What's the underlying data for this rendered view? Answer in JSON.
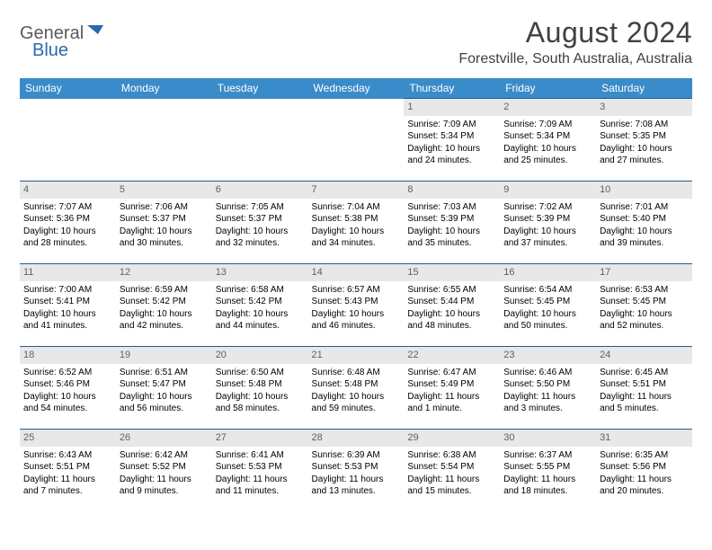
{
  "logo": {
    "word1": "General",
    "word2": "Blue"
  },
  "title": "August 2024",
  "location": "Forestville, South Australia, Australia",
  "dayHeaders": [
    "Sunday",
    "Monday",
    "Tuesday",
    "Wednesday",
    "Thursday",
    "Friday",
    "Saturday"
  ],
  "colors": {
    "headerBg": "#3a8bc9",
    "cellBorder": "#2a5a8a",
    "daynumBg": "#e8e8e8",
    "logoBlue": "#2a6ab0"
  },
  "weeks": [
    [
      null,
      null,
      null,
      null,
      {
        "n": "1",
        "sr": "Sunrise: 7:09 AM",
        "ss": "Sunset: 5:34 PM",
        "dl1": "Daylight: 10 hours",
        "dl2": "and 24 minutes."
      },
      {
        "n": "2",
        "sr": "Sunrise: 7:09 AM",
        "ss": "Sunset: 5:34 PM",
        "dl1": "Daylight: 10 hours",
        "dl2": "and 25 minutes."
      },
      {
        "n": "3",
        "sr": "Sunrise: 7:08 AM",
        "ss": "Sunset: 5:35 PM",
        "dl1": "Daylight: 10 hours",
        "dl2": "and 27 minutes."
      }
    ],
    [
      {
        "n": "4",
        "sr": "Sunrise: 7:07 AM",
        "ss": "Sunset: 5:36 PM",
        "dl1": "Daylight: 10 hours",
        "dl2": "and 28 minutes."
      },
      {
        "n": "5",
        "sr": "Sunrise: 7:06 AM",
        "ss": "Sunset: 5:37 PM",
        "dl1": "Daylight: 10 hours",
        "dl2": "and 30 minutes."
      },
      {
        "n": "6",
        "sr": "Sunrise: 7:05 AM",
        "ss": "Sunset: 5:37 PM",
        "dl1": "Daylight: 10 hours",
        "dl2": "and 32 minutes."
      },
      {
        "n": "7",
        "sr": "Sunrise: 7:04 AM",
        "ss": "Sunset: 5:38 PM",
        "dl1": "Daylight: 10 hours",
        "dl2": "and 34 minutes."
      },
      {
        "n": "8",
        "sr": "Sunrise: 7:03 AM",
        "ss": "Sunset: 5:39 PM",
        "dl1": "Daylight: 10 hours",
        "dl2": "and 35 minutes."
      },
      {
        "n": "9",
        "sr": "Sunrise: 7:02 AM",
        "ss": "Sunset: 5:39 PM",
        "dl1": "Daylight: 10 hours",
        "dl2": "and 37 minutes."
      },
      {
        "n": "10",
        "sr": "Sunrise: 7:01 AM",
        "ss": "Sunset: 5:40 PM",
        "dl1": "Daylight: 10 hours",
        "dl2": "and 39 minutes."
      }
    ],
    [
      {
        "n": "11",
        "sr": "Sunrise: 7:00 AM",
        "ss": "Sunset: 5:41 PM",
        "dl1": "Daylight: 10 hours",
        "dl2": "and 41 minutes."
      },
      {
        "n": "12",
        "sr": "Sunrise: 6:59 AM",
        "ss": "Sunset: 5:42 PM",
        "dl1": "Daylight: 10 hours",
        "dl2": "and 42 minutes."
      },
      {
        "n": "13",
        "sr": "Sunrise: 6:58 AM",
        "ss": "Sunset: 5:42 PM",
        "dl1": "Daylight: 10 hours",
        "dl2": "and 44 minutes."
      },
      {
        "n": "14",
        "sr": "Sunrise: 6:57 AM",
        "ss": "Sunset: 5:43 PM",
        "dl1": "Daylight: 10 hours",
        "dl2": "and 46 minutes."
      },
      {
        "n": "15",
        "sr": "Sunrise: 6:55 AM",
        "ss": "Sunset: 5:44 PM",
        "dl1": "Daylight: 10 hours",
        "dl2": "and 48 minutes."
      },
      {
        "n": "16",
        "sr": "Sunrise: 6:54 AM",
        "ss": "Sunset: 5:45 PM",
        "dl1": "Daylight: 10 hours",
        "dl2": "and 50 minutes."
      },
      {
        "n": "17",
        "sr": "Sunrise: 6:53 AM",
        "ss": "Sunset: 5:45 PM",
        "dl1": "Daylight: 10 hours",
        "dl2": "and 52 minutes."
      }
    ],
    [
      {
        "n": "18",
        "sr": "Sunrise: 6:52 AM",
        "ss": "Sunset: 5:46 PM",
        "dl1": "Daylight: 10 hours",
        "dl2": "and 54 minutes."
      },
      {
        "n": "19",
        "sr": "Sunrise: 6:51 AM",
        "ss": "Sunset: 5:47 PM",
        "dl1": "Daylight: 10 hours",
        "dl2": "and 56 minutes."
      },
      {
        "n": "20",
        "sr": "Sunrise: 6:50 AM",
        "ss": "Sunset: 5:48 PM",
        "dl1": "Daylight: 10 hours",
        "dl2": "and 58 minutes."
      },
      {
        "n": "21",
        "sr": "Sunrise: 6:48 AM",
        "ss": "Sunset: 5:48 PM",
        "dl1": "Daylight: 10 hours",
        "dl2": "and 59 minutes."
      },
      {
        "n": "22",
        "sr": "Sunrise: 6:47 AM",
        "ss": "Sunset: 5:49 PM",
        "dl1": "Daylight: 11 hours",
        "dl2": "and 1 minute."
      },
      {
        "n": "23",
        "sr": "Sunrise: 6:46 AM",
        "ss": "Sunset: 5:50 PM",
        "dl1": "Daylight: 11 hours",
        "dl2": "and 3 minutes."
      },
      {
        "n": "24",
        "sr": "Sunrise: 6:45 AM",
        "ss": "Sunset: 5:51 PM",
        "dl1": "Daylight: 11 hours",
        "dl2": "and 5 minutes."
      }
    ],
    [
      {
        "n": "25",
        "sr": "Sunrise: 6:43 AM",
        "ss": "Sunset: 5:51 PM",
        "dl1": "Daylight: 11 hours",
        "dl2": "and 7 minutes."
      },
      {
        "n": "26",
        "sr": "Sunrise: 6:42 AM",
        "ss": "Sunset: 5:52 PM",
        "dl1": "Daylight: 11 hours",
        "dl2": "and 9 minutes."
      },
      {
        "n": "27",
        "sr": "Sunrise: 6:41 AM",
        "ss": "Sunset: 5:53 PM",
        "dl1": "Daylight: 11 hours",
        "dl2": "and 11 minutes."
      },
      {
        "n": "28",
        "sr": "Sunrise: 6:39 AM",
        "ss": "Sunset: 5:53 PM",
        "dl1": "Daylight: 11 hours",
        "dl2": "and 13 minutes."
      },
      {
        "n": "29",
        "sr": "Sunrise: 6:38 AM",
        "ss": "Sunset: 5:54 PM",
        "dl1": "Daylight: 11 hours",
        "dl2": "and 15 minutes."
      },
      {
        "n": "30",
        "sr": "Sunrise: 6:37 AM",
        "ss": "Sunset: 5:55 PM",
        "dl1": "Daylight: 11 hours",
        "dl2": "and 18 minutes."
      },
      {
        "n": "31",
        "sr": "Sunrise: 6:35 AM",
        "ss": "Sunset: 5:56 PM",
        "dl1": "Daylight: 11 hours",
        "dl2": "and 20 minutes."
      }
    ]
  ]
}
